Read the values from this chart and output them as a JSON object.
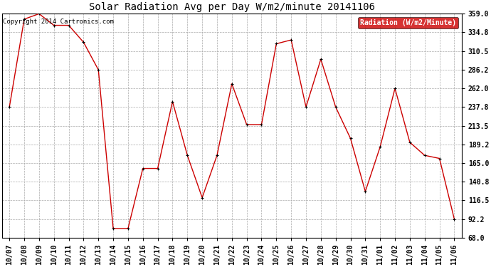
{
  "title": "Solar Radiation Avg per Day W/m2/minute 20141106",
  "copyright": "Copyright 2014 Cartronics.com",
  "legend_label": "Radiation (W/m2/Minute)",
  "dates": [
    "10/07",
    "10/08",
    "10/09",
    "10/10",
    "10/11",
    "10/12",
    "10/13",
    "10/14",
    "10/15",
    "10/16",
    "10/17",
    "10/18",
    "10/19",
    "10/20",
    "10/21",
    "10/22",
    "10/23",
    "10/24",
    "10/25",
    "10/26",
    "10/27",
    "10/28",
    "10/29",
    "10/30",
    "10/31",
    "11/01",
    "11/02",
    "11/03",
    "11/04",
    "11/05",
    "11/06"
  ],
  "values": [
    237.8,
    352.0,
    359.0,
    344.0,
    344.0,
    322.0,
    286.2,
    80.0,
    80.0,
    158.0,
    158.0,
    245.0,
    175.0,
    120.0,
    175.0,
    268.0,
    215.0,
    215.0,
    320.0,
    325.0,
    237.8,
    300.0,
    237.8,
    197.0,
    128.0,
    186.0,
    262.0,
    192.0,
    175.0,
    171.0,
    92.2
  ],
  "ylim": [
    68.0,
    359.0
  ],
  "yticks": [
    68.0,
    92.2,
    116.5,
    140.8,
    165.0,
    189.2,
    213.5,
    237.8,
    262.0,
    286.2,
    310.5,
    334.8,
    359.0
  ],
  "line_color": "#cc0000",
  "marker_color": "#000000",
  "bg_color": "#ffffff",
  "grid_color": "#aaaaaa",
  "legend_bg": "#cc0000",
  "legend_text_color": "#ffffff",
  "title_fontsize": 10,
  "copyright_fontsize": 6.5,
  "tick_fontsize": 7,
  "legend_fontsize": 7
}
